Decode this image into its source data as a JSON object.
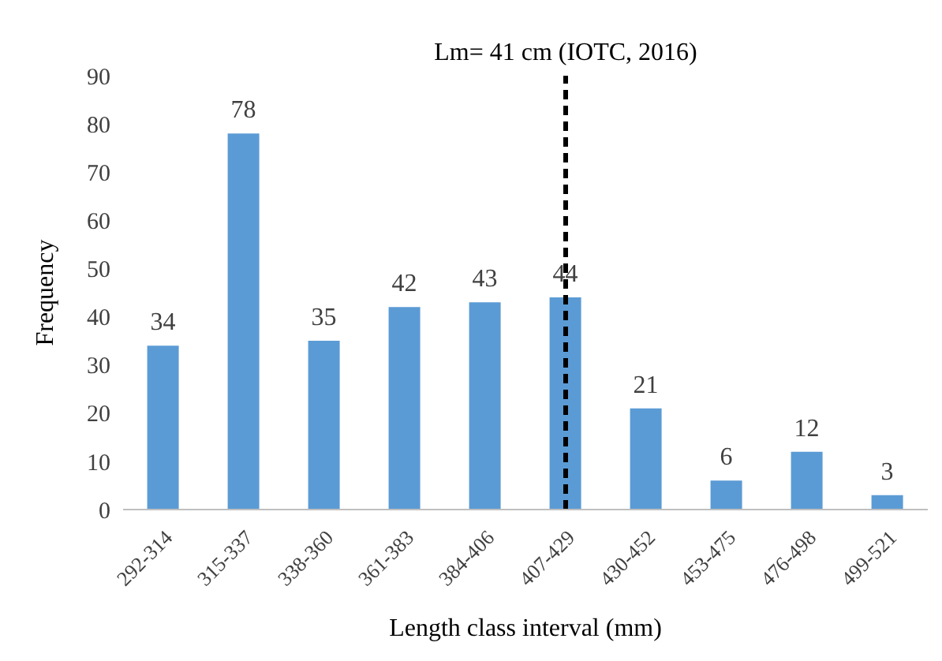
{
  "chart_data": {
    "type": "bar",
    "xlabel": "Length class interval (mm)",
    "ylabel": "Frequency",
    "categories": [
      "292-314",
      "315-337",
      "338-360",
      "361-383",
      "384-406",
      "407-429",
      "430-452",
      "453-475",
      "476-498",
      "499-521"
    ],
    "values": [
      34,
      78,
      35,
      42,
      43,
      44,
      21,
      6,
      12,
      3
    ],
    "color": "#5b9bd5",
    "data_labels": true,
    "ylim": [
      0,
      90
    ],
    "yticks": [
      0,
      10,
      20,
      30,
      40,
      50,
      60,
      70,
      80,
      90
    ],
    "grid": false,
    "legend": false,
    "ref_lines": [
      {
        "axis": "x",
        "value": "407-429",
        "label": "Lm= 41 cm (IOTC, 2016)",
        "color": "#000000",
        "line_style": "dashed"
      }
    ]
  }
}
